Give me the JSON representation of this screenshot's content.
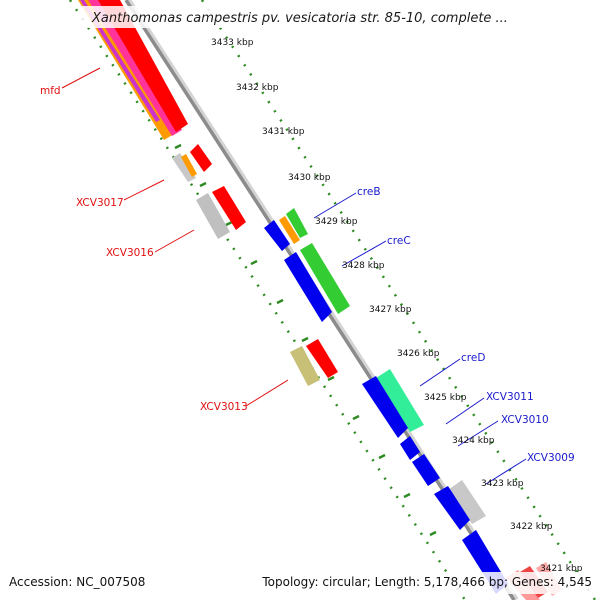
{
  "title": "Xanthomonas campestris pv. vesicatoria str. 85-10, complete ...",
  "footer": {
    "accession": "Accession: NC_007508",
    "stats": "Topology: circular; Length: 5,178,466 bp; Genes: 4,545"
  },
  "colors": {
    "backbone": "#8c8c8c",
    "tick_dots": "#2e8b22",
    "label_red": "#e01010",
    "label_blue": "#1a1acc"
  },
  "kbp_ticks": [
    "3433 kbp",
    "3432 kbp",
    "3431 kbp",
    "3430 kbp",
    "3429 kbp",
    "3428 kbp",
    "3427 kbp",
    "3426 kbp",
    "3425 kbp",
    "3424 kbp",
    "3423 kbp",
    "3422 kbp",
    "3421 kbp"
  ],
  "gene_labels_left": [
    "mfd",
    "XCV3017",
    "XCV3016",
    "XCV3013"
  ],
  "gene_labels_right": [
    "creB",
    "creC",
    "creD",
    "XCV3011",
    "XCV3010",
    "XCV3009"
  ]
}
